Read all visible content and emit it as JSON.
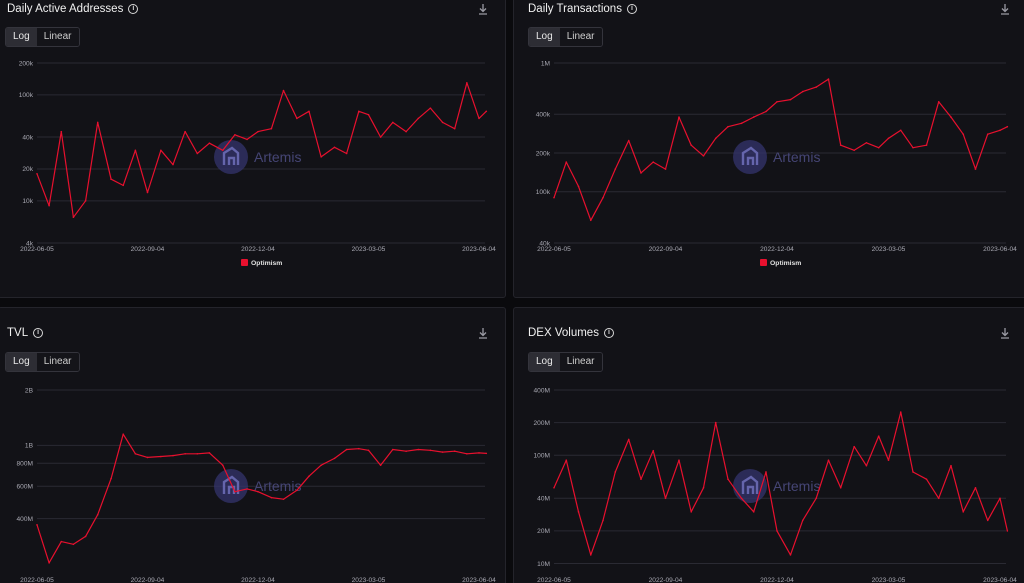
{
  "accent": "#e8102e",
  "watermark": "Artemis",
  "toggle": {
    "log": "Log",
    "linear": "Linear",
    "selected": "Log"
  },
  "icons": {
    "info": "info-icon",
    "download": "download-icon"
  },
  "chart_data": [
    {
      "id": "daa",
      "title": "Daily Active Addresses",
      "type": "line",
      "scale": "log",
      "ylim": [
        4000,
        200000
      ],
      "yticks": [
        4000,
        10000,
        20000,
        40000,
        100000,
        200000
      ],
      "ytick_labels": [
        "4k",
        "10k",
        "20k",
        "40k",
        "100k",
        "200k"
      ],
      "xticks": [
        "2022-06-05",
        "2022-09-04",
        "2022-12-04",
        "2023-03-05",
        "2023-06-04"
      ],
      "legend": [
        "Optimism"
      ],
      "series": [
        {
          "name": "Optimism",
          "x": [
            "2022-06-05",
            "2022-06-15",
            "2022-06-25",
            "2022-07-05",
            "2022-07-15",
            "2022-07-25",
            "2022-08-05",
            "2022-08-15",
            "2022-08-25",
            "2022-09-04",
            "2022-09-15",
            "2022-09-25",
            "2022-10-05",
            "2022-10-15",
            "2022-10-25",
            "2022-11-05",
            "2022-11-15",
            "2022-11-25",
            "2022-12-04",
            "2022-12-15",
            "2022-12-25",
            "2023-01-05",
            "2023-01-15",
            "2023-01-25",
            "2023-02-05",
            "2023-02-15",
            "2023-02-25",
            "2023-03-05",
            "2023-03-15",
            "2023-03-25",
            "2023-04-05",
            "2023-04-15",
            "2023-04-25",
            "2023-05-05",
            "2023-05-15",
            "2023-05-25",
            "2023-06-04",
            "2023-06-10"
          ],
          "values": [
            18000,
            9000,
            45000,
            7000,
            10000,
            55000,
            16000,
            14000,
            30000,
            12000,
            30000,
            22000,
            45000,
            28000,
            35000,
            30000,
            42000,
            38000,
            45000,
            48000,
            110000,
            60000,
            70000,
            26000,
            32000,
            28000,
            70000,
            65000,
            40000,
            55000,
            45000,
            60000,
            75000,
            55000,
            48000,
            130000,
            60000,
            70000
          ]
        }
      ]
    },
    {
      "id": "txns",
      "title": "Daily Transactions",
      "type": "line",
      "scale": "log",
      "ylim": [
        40000,
        1000000
      ],
      "yticks": [
        40000,
        100000,
        200000,
        400000,
        1000000
      ],
      "ytick_labels": [
        "40k",
        "100k",
        "200k",
        "400k",
        "1M"
      ],
      "xticks": [
        "2022-06-05",
        "2022-09-04",
        "2022-12-04",
        "2023-03-05",
        "2023-06-04"
      ],
      "legend": [
        "Optimism"
      ],
      "series": [
        {
          "name": "Optimism",
          "x": [
            "2022-06-05",
            "2022-06-15",
            "2022-06-25",
            "2022-07-05",
            "2022-07-15",
            "2022-07-25",
            "2022-08-05",
            "2022-08-15",
            "2022-08-25",
            "2022-09-04",
            "2022-09-15",
            "2022-09-25",
            "2022-10-05",
            "2022-10-15",
            "2022-10-25",
            "2022-11-05",
            "2022-11-15",
            "2022-11-25",
            "2022-12-04",
            "2022-12-15",
            "2022-12-25",
            "2023-01-05",
            "2023-01-15",
            "2023-01-25",
            "2023-02-05",
            "2023-02-15",
            "2023-02-25",
            "2023-03-05",
            "2023-03-15",
            "2023-03-25",
            "2023-04-05",
            "2023-04-15",
            "2023-04-25",
            "2023-05-05",
            "2023-05-15",
            "2023-05-25",
            "2023-06-04",
            "2023-06-10"
          ],
          "values": [
            90000,
            170000,
            110000,
            60000,
            90000,
            150000,
            250000,
            140000,
            170000,
            150000,
            380000,
            230000,
            190000,
            260000,
            320000,
            340000,
            380000,
            420000,
            500000,
            520000,
            600000,
            650000,
            750000,
            230000,
            210000,
            240000,
            220000,
            260000,
            300000,
            220000,
            230000,
            500000,
            380000,
            280000,
            150000,
            280000,
            300000,
            320000
          ]
        }
      ]
    },
    {
      "id": "tvl",
      "title": "TVL",
      "type": "line",
      "scale": "log",
      "ylim": [
        200000000,
        2000000000
      ],
      "yticks": [
        400000000,
        600000000,
        800000000,
        1000000000,
        2000000000
      ],
      "ytick_labels": [
        "400M",
        "600M",
        "800M",
        "1B",
        "2B"
      ],
      "xticks": [
        "2022-06-05",
        "2022-09-04",
        "2022-12-04",
        "2023-03-05",
        "2023-06-04"
      ],
      "series": [
        {
          "name": "TVL",
          "x": [
            "2022-06-05",
            "2022-06-15",
            "2022-06-25",
            "2022-07-05",
            "2022-07-15",
            "2022-07-25",
            "2022-08-05",
            "2022-08-15",
            "2022-08-25",
            "2022-09-04",
            "2022-09-15",
            "2022-09-25",
            "2022-10-05",
            "2022-10-15",
            "2022-10-25",
            "2022-11-05",
            "2022-11-15",
            "2022-11-25",
            "2022-12-04",
            "2022-12-15",
            "2022-12-25",
            "2023-01-05",
            "2023-01-15",
            "2023-01-25",
            "2023-02-05",
            "2023-02-15",
            "2023-02-25",
            "2023-03-05",
            "2023-03-15",
            "2023-03-25",
            "2023-04-05",
            "2023-04-15",
            "2023-04-25",
            "2023-05-05",
            "2023-05-15",
            "2023-05-25",
            "2023-06-04",
            "2023-06-10"
          ],
          "values": [
            370000000,
            230000000,
            300000000,
            290000000,
            320000000,
            420000000,
            660000000,
            1150000000,
            900000000,
            860000000,
            870000000,
            880000000,
            900000000,
            900000000,
            910000000,
            780000000,
            560000000,
            580000000,
            560000000,
            520000000,
            510000000,
            570000000,
            680000000,
            780000000,
            850000000,
            950000000,
            960000000,
            940000000,
            780000000,
            950000000,
            930000000,
            950000000,
            940000000,
            920000000,
            930000000,
            900000000,
            910000000,
            905000000
          ]
        }
      ]
    },
    {
      "id": "dex",
      "title": "DEX Volumes",
      "type": "line",
      "scale": "log",
      "ylim": [
        8000000,
        400000000
      ],
      "yticks": [
        10000000,
        20000000,
        40000000,
        100000000,
        200000000,
        400000000
      ],
      "ytick_labels": [
        "10M",
        "20M",
        "40M",
        "100M",
        "200M",
        "400M"
      ],
      "xticks": [
        "2022-06-05",
        "2022-09-04",
        "2022-12-04",
        "2023-03-05",
        "2023-06-04"
      ],
      "series": [
        {
          "name": "DEX Volumes",
          "x": [
            "2022-06-05",
            "2022-06-15",
            "2022-06-25",
            "2022-07-05",
            "2022-07-15",
            "2022-07-25",
            "2022-08-05",
            "2022-08-15",
            "2022-08-25",
            "2022-09-04",
            "2022-09-15",
            "2022-09-25",
            "2022-10-05",
            "2022-10-15",
            "2022-10-25",
            "2022-11-05",
            "2022-11-15",
            "2022-11-25",
            "2022-12-04",
            "2022-12-15",
            "2022-12-25",
            "2023-01-05",
            "2023-01-15",
            "2023-01-25",
            "2023-02-05",
            "2023-02-15",
            "2023-02-25",
            "2023-03-05",
            "2023-03-15",
            "2023-03-25",
            "2023-04-05",
            "2023-04-15",
            "2023-04-25",
            "2023-05-05",
            "2023-05-15",
            "2023-05-25",
            "2023-06-04",
            "2023-06-10"
          ],
          "values": [
            50000000,
            90000000,
            30000000,
            12000000,
            25000000,
            70000000,
            140000000,
            60000000,
            110000000,
            40000000,
            90000000,
            30000000,
            50000000,
            200000000,
            60000000,
            40000000,
            30000000,
            70000000,
            20000000,
            12000000,
            25000000,
            40000000,
            90000000,
            50000000,
            120000000,
            80000000,
            150000000,
            90000000,
            250000000,
            70000000,
            60000000,
            40000000,
            80000000,
            30000000,
            50000000,
            25000000,
            40000000,
            20000000
          ]
        }
      ]
    }
  ]
}
